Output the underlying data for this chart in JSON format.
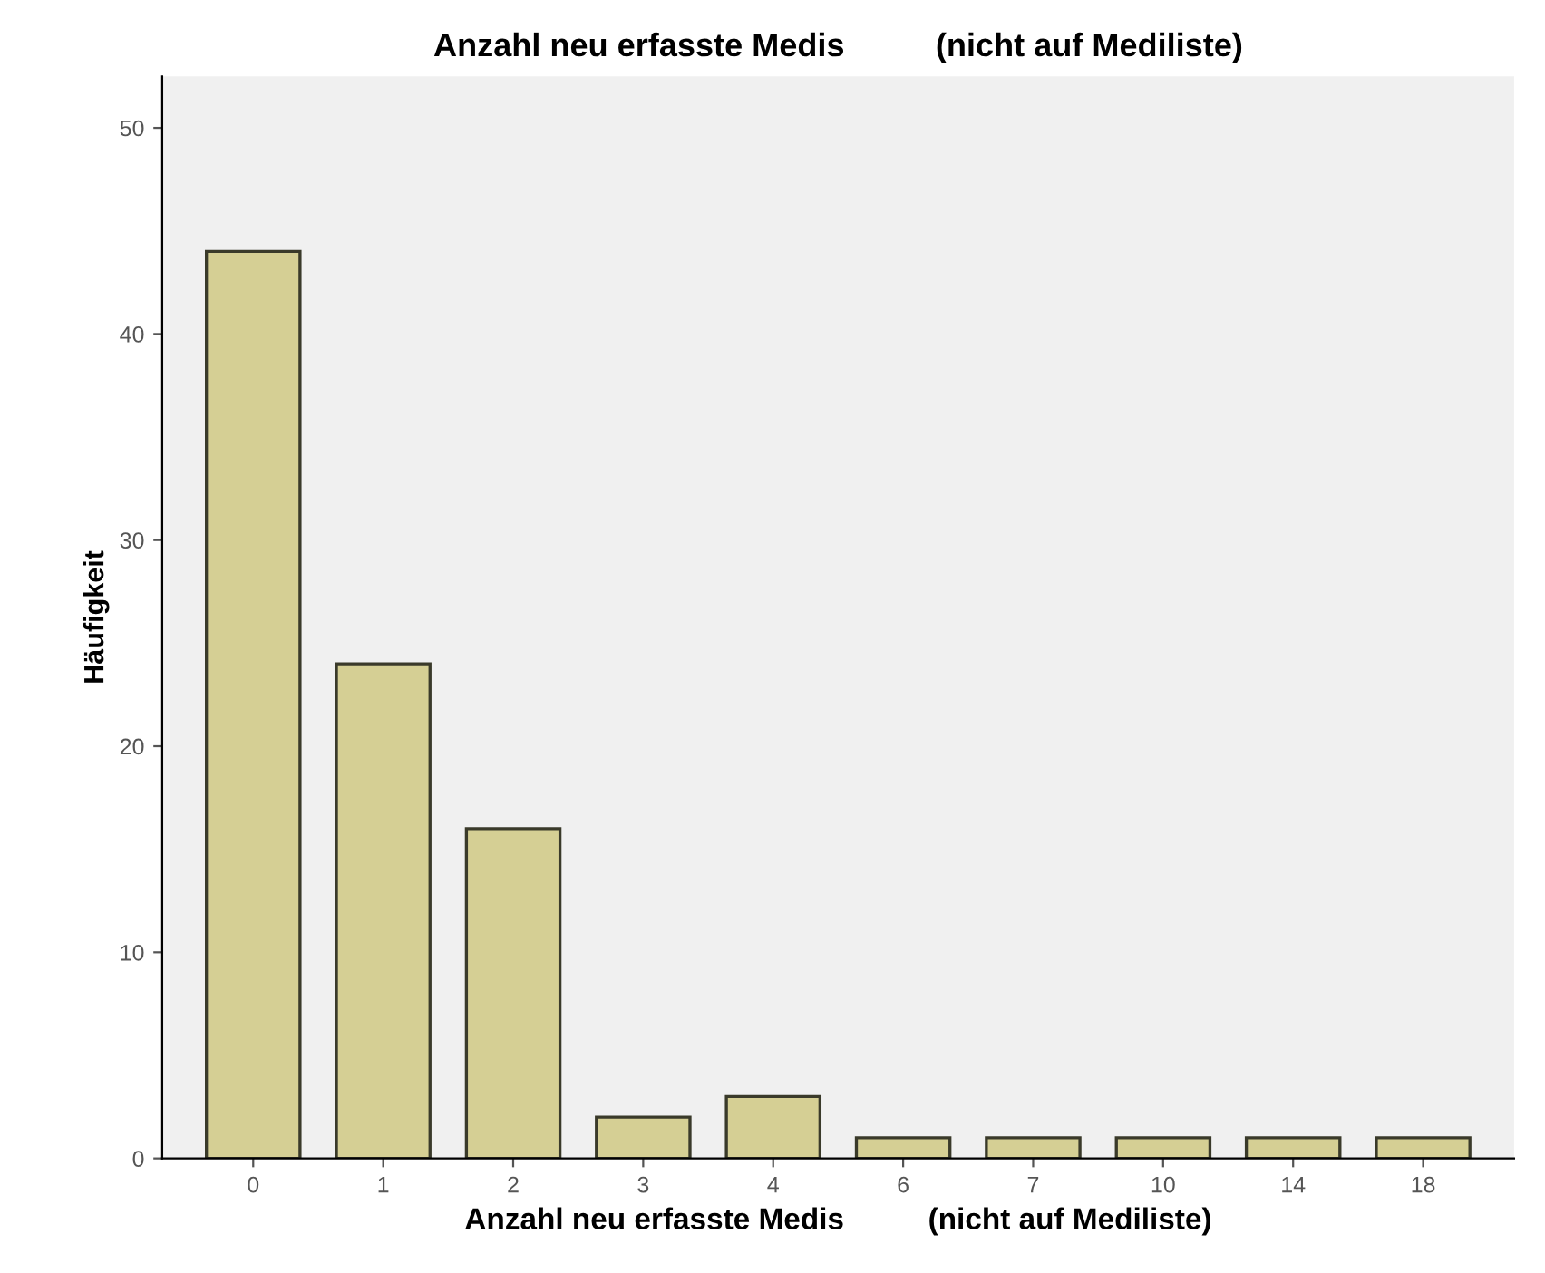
{
  "chart_data": {
    "type": "bar",
    "title": "Anzahl neu erfasste Medis          (nicht auf Mediliste)",
    "xlabel": "Anzahl neu erfasste Medis          (nicht auf Mediliste)",
    "ylabel": "Häufigkeit",
    "categories": [
      "0",
      "1",
      "2",
      "3",
      "4",
      "6",
      "7",
      "10",
      "14",
      "18"
    ],
    "values": [
      44,
      24,
      16,
      2,
      3,
      1,
      1,
      1,
      1,
      1
    ],
    "color": "#d5cf94",
    "ylim": [
      0,
      52.5
    ],
    "yticks": [
      0,
      10,
      20,
      30,
      40,
      50
    ],
    "grid": false,
    "legend": false
  }
}
